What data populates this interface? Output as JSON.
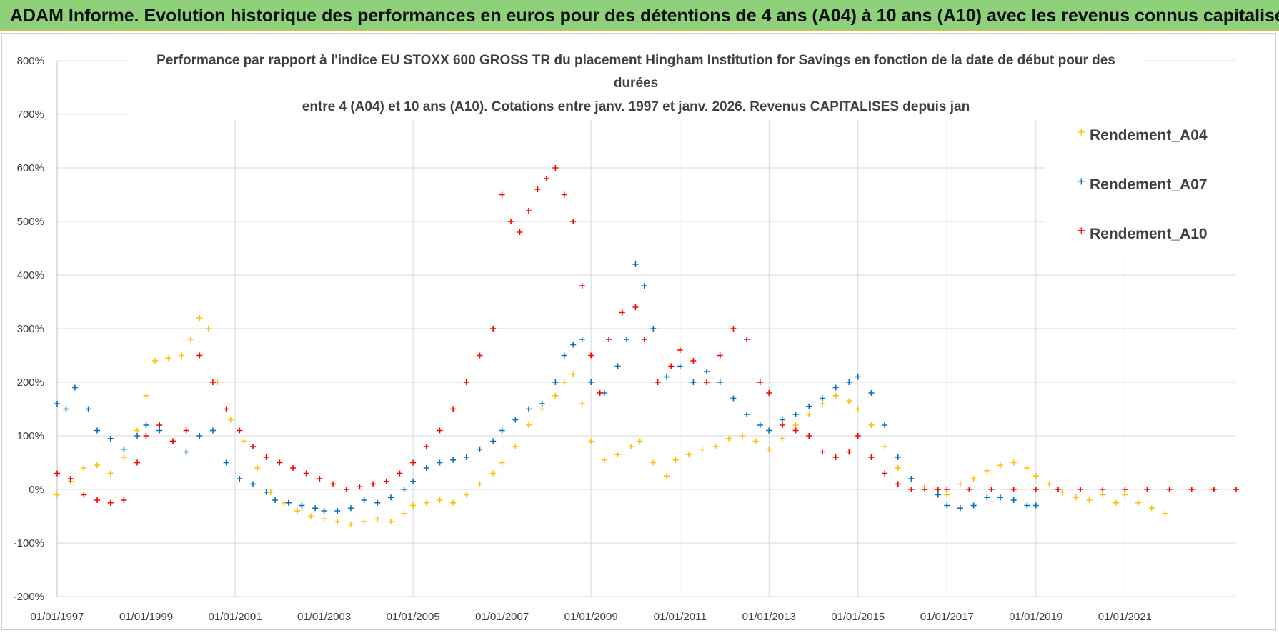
{
  "banner": {
    "title": "ADAM Informe. Evolution historique des performances en euros pour des détentions de 4 ans (A04) à 10 ans (A10) avec les revenus connus capitalisés"
  },
  "chart_data": {
    "type": "scatter",
    "title_lines": [
      "Performance par rapport à l'indice EU STOXX 600 GROSS TR  du placement Hingham Institution for Savings en fonction de la date de début pour des",
      "durées",
      "entre 4 (A04) et 10 ans (A10). Cotations entre janv. 1997 et janv. 2026. Revenus CAPITALISES depuis jan"
    ],
    "ylim": [
      -200,
      800
    ],
    "y_ticks": [
      -200,
      -100,
      0,
      100,
      200,
      300,
      400,
      500,
      600,
      700,
      800
    ],
    "y_tick_labels": [
      "-200%",
      "-100%",
      "0%",
      "100%",
      "200%",
      "300%",
      "400%",
      "500%",
      "600%",
      "700%",
      "800%"
    ],
    "xlim": [
      1997,
      2023.5
    ],
    "x_ticks": [
      1997,
      1999,
      2001,
      2003,
      2005,
      2007,
      2009,
      2011,
      2013,
      2015,
      2017,
      2019,
      2021
    ],
    "x_tick_labels": [
      "01/01/1997",
      "01/01/1999",
      "01/01/2001",
      "01/01/2003",
      "01/01/2005",
      "01/01/2007",
      "01/01/2009",
      "01/01/2011",
      "01/01/2013",
      "01/01/2015",
      "01/01/2017",
      "01/01/2019",
      "01/01/2021"
    ],
    "legend_position": "top-right",
    "series": [
      {
        "name": "Rendement_A04",
        "color": "#ffc000",
        "x": [
          1997.0,
          1997.3,
          1997.6,
          1997.9,
          1998.2,
          1998.5,
          1998.8,
          1999.0,
          1999.2,
          1999.5,
          1999.8,
          2000.0,
          2000.2,
          2000.4,
          2000.6,
          2000.9,
          2001.2,
          2001.5,
          2001.8,
          2002.1,
          2002.4,
          2002.7,
          2003.0,
          2003.3,
          2003.6,
          2003.9,
          2004.2,
          2004.5,
          2004.8,
          2005.0,
          2005.3,
          2005.6,
          2005.9,
          2006.2,
          2006.5,
          2006.8,
          2007.0,
          2007.3,
          2007.6,
          2007.9,
          2008.2,
          2008.4,
          2008.6,
          2008.8,
          2009.0,
          2009.3,
          2009.6,
          2009.9,
          2010.1,
          2010.4,
          2010.7,
          2010.9,
          2011.2,
          2011.5,
          2011.8,
          2012.1,
          2012.4,
          2012.7,
          2013.0,
          2013.3,
          2013.6,
          2013.9,
          2014.2,
          2014.5,
          2014.8,
          2015.0,
          2015.3,
          2015.6,
          2015.9,
          2016.2,
          2016.5,
          2016.8,
          2017.0,
          2017.3,
          2017.6,
          2017.9,
          2018.2,
          2018.5,
          2018.8,
          2019.0,
          2019.3,
          2019.6,
          2019.9,
          2020.2,
          2020.5,
          2020.8,
          2021.0,
          2021.3,
          2021.6,
          2021.9
        ],
        "y": [
          -10,
          15,
          40,
          45,
          30,
          60,
          110,
          175,
          240,
          245,
          250,
          280,
          320,
          300,
          200,
          130,
          90,
          40,
          -5,
          -25,
          -40,
          -50,
          -55,
          -60,
          -65,
          -60,
          -55,
          -60,
          -45,
          -30,
          -25,
          -20,
          -25,
          -10,
          10,
          30,
          50,
          80,
          120,
          150,
          175,
          200,
          215,
          160,
          90,
          55,
          65,
          80,
          90,
          50,
          25,
          55,
          65,
          75,
          80,
          95,
          100,
          90,
          75,
          95,
          120,
          140,
          160,
          175,
          165,
          150,
          120,
          80,
          40,
          20,
          5,
          0,
          -10,
          10,
          20,
          35,
          45,
          50,
          40,
          25,
          10,
          -5,
          -15,
          -20,
          -10,
          -25,
          -10,
          -25,
          -35,
          -45
        ]
      },
      {
        "name": "Rendement_A07",
        "color": "#0070c0",
        "x": [
          1997.0,
          1997.2,
          1997.4,
          1997.7,
          1997.9,
          1998.2,
          1998.5,
          1998.8,
          1999.0,
          1999.3,
          1999.6,
          1999.9,
          2000.2,
          2000.5,
          2000.8,
          2001.1,
          2001.4,
          2001.7,
          2001.9,
          2002.2,
          2002.5,
          2002.8,
          2003.0,
          2003.3,
          2003.6,
          2003.9,
          2004.2,
          2004.5,
          2004.8,
          2005.0,
          2005.3,
          2005.6,
          2005.9,
          2006.2,
          2006.5,
          2006.8,
          2007.0,
          2007.3,
          2007.6,
          2007.9,
          2008.2,
          2008.4,
          2008.6,
          2008.8,
          2009.0,
          2009.3,
          2009.6,
          2009.8,
          2010.0,
          2010.2,
          2010.4,
          2010.7,
          2011.0,
          2011.3,
          2011.6,
          2011.9,
          2012.2,
          2012.5,
          2012.8,
          2013.0,
          2013.3,
          2013.6,
          2013.9,
          2014.2,
          2014.5,
          2014.8,
          2015.0,
          2015.3,
          2015.6,
          2015.9,
          2016.2,
          2016.5,
          2016.8,
          2017.0,
          2017.3,
          2017.6,
          2017.9,
          2018.2,
          2018.5,
          2018.8,
          2019.0
        ],
        "y": [
          160,
          150,
          190,
          150,
          110,
          95,
          75,
          100,
          120,
          110,
          90,
          70,
          100,
          110,
          50,
          20,
          10,
          -5,
          -20,
          -25,
          -30,
          -35,
          -40,
          -40,
          -35,
          -20,
          -25,
          -15,
          0,
          15,
          40,
          50,
          55,
          60,
          75,
          90,
          110,
          130,
          150,
          160,
          200,
          250,
          270,
          280,
          200,
          180,
          230,
          280,
          420,
          380,
          300,
          210,
          230,
          200,
          220,
          200,
          170,
          140,
          120,
          110,
          130,
          140,
          155,
          170,
          190,
          200,
          210,
          180,
          120,
          60,
          20,
          0,
          -10,
          -30,
          -35,
          -30,
          -15,
          -15,
          -20,
          -30,
          -30
        ]
      },
      {
        "name": "Rendement_A10",
        "color": "#ff0000",
        "x": [
          1997.0,
          1997.3,
          1997.6,
          1997.9,
          1998.2,
          1998.5,
          1998.8,
          1999.0,
          1999.3,
          1999.6,
          1999.9,
          2000.2,
          2000.5,
          2000.8,
          2001.1,
          2001.4,
          2001.7,
          2002.0,
          2002.3,
          2002.6,
          2002.9,
          2003.2,
          2003.5,
          2003.8,
          2004.1,
          2004.4,
          2004.7,
          2005.0,
          2005.3,
          2005.6,
          2005.9,
          2006.2,
          2006.5,
          2006.8,
          2007.0,
          2007.2,
          2007.4,
          2007.6,
          2007.8,
          2008.0,
          2008.2,
          2008.4,
          2008.6,
          2008.8,
          2009.0,
          2009.2,
          2009.4,
          2009.7,
          2010.0,
          2010.2,
          2010.5,
          2010.8,
          2011.0,
          2011.3,
          2011.6,
          2011.9,
          2012.2,
          2012.5,
          2012.8,
          2013.0,
          2013.3,
          2013.6,
          2013.9,
          2014.2,
          2014.5,
          2014.8,
          2015.0,
          2015.3,
          2015.6,
          2015.9,
          2016.2,
          2016.5,
          2016.8,
          2017.0,
          2017.5,
          2018.0,
          2018.5,
          2019.0,
          2019.5,
          2020.0,
          2020.5,
          2021.0,
          2021.5,
          2022.0,
          2022.5,
          2023.0,
          2023.5
        ],
        "y": [
          30,
          20,
          -10,
          -20,
          -25,
          -20,
          50,
          100,
          120,
          90,
          110,
          250,
          200,
          150,
          110,
          80,
          60,
          50,
          40,
          30,
          20,
          10,
          0,
          5,
          10,
          15,
          30,
          50,
          80,
          110,
          150,
          200,
          250,
          300,
          550,
          500,
          480,
          520,
          560,
          580,
          600,
          550,
          500,
          380,
          250,
          180,
          280,
          330,
          340,
          280,
          200,
          230,
          260,
          240,
          200,
          250,
          300,
          280,
          200,
          180,
          120,
          110,
          100,
          70,
          60,
          70,
          100,
          60,
          30,
          10,
          0,
          0,
          0,
          0,
          0,
          0,
          0,
          0,
          0,
          0,
          0,
          0,
          0,
          0,
          0,
          0,
          0
        ]
      }
    ]
  }
}
